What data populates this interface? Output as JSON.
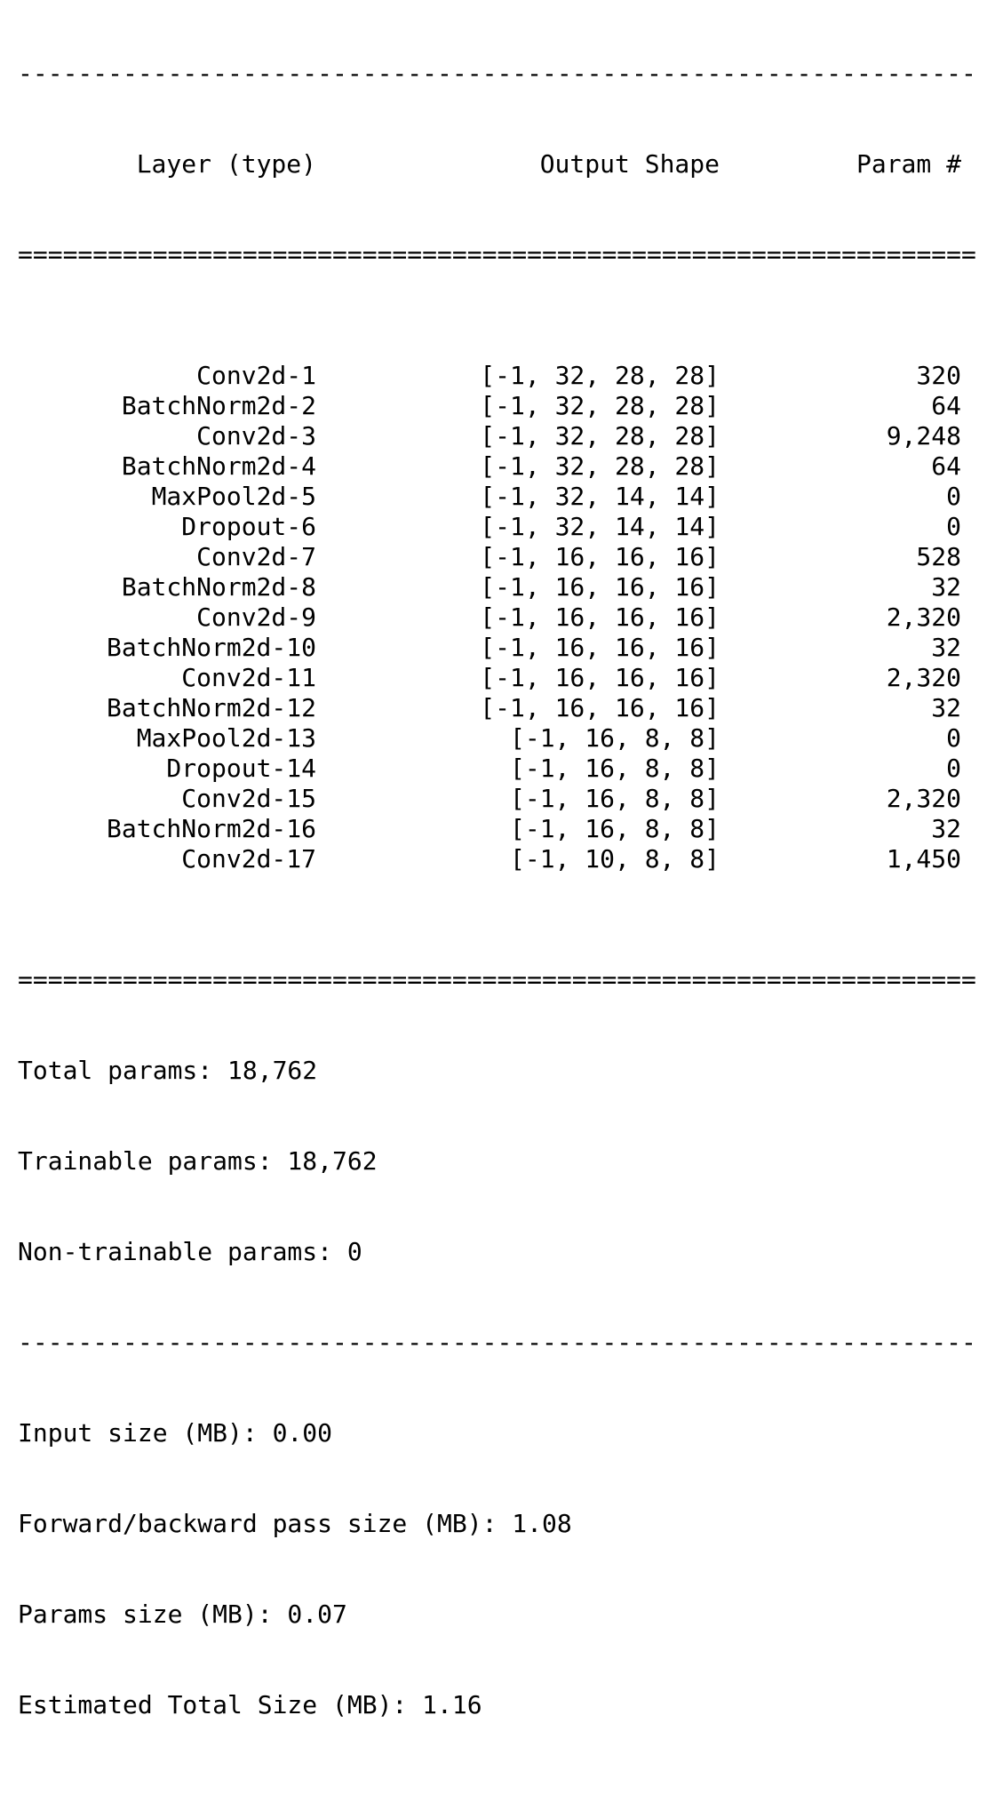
{
  "rules": {
    "dash": "----------------------------------------------------------------",
    "equal": "================================================================"
  },
  "header": {
    "layer": "Layer (type)",
    "shape": "Output Shape",
    "param": "Param #"
  },
  "rows": [
    {
      "layer": "Conv2d-1",
      "shape": "[-1, 32, 28, 28]",
      "param": "320"
    },
    {
      "layer": "BatchNorm2d-2",
      "shape": "[-1, 32, 28, 28]",
      "param": "64"
    },
    {
      "layer": "Conv2d-3",
      "shape": "[-1, 32, 28, 28]",
      "param": "9,248"
    },
    {
      "layer": "BatchNorm2d-4",
      "shape": "[-1, 32, 28, 28]",
      "param": "64"
    },
    {
      "layer": "MaxPool2d-5",
      "shape": "[-1, 32, 14, 14]",
      "param": "0"
    },
    {
      "layer": "Dropout-6",
      "shape": "[-1, 32, 14, 14]",
      "param": "0"
    },
    {
      "layer": "Conv2d-7",
      "shape": "[-1, 16, 16, 16]",
      "param": "528"
    },
    {
      "layer": "BatchNorm2d-8",
      "shape": "[-1, 16, 16, 16]",
      "param": "32"
    },
    {
      "layer": "Conv2d-9",
      "shape": "[-1, 16, 16, 16]",
      "param": "2,320"
    },
    {
      "layer": "BatchNorm2d-10",
      "shape": "[-1, 16, 16, 16]",
      "param": "32"
    },
    {
      "layer": "Conv2d-11",
      "shape": "[-1, 16, 16, 16]",
      "param": "2,320"
    },
    {
      "layer": "BatchNorm2d-12",
      "shape": "[-1, 16, 16, 16]",
      "param": "32"
    },
    {
      "layer": "MaxPool2d-13",
      "shape": "[-1, 16, 8, 8]",
      "param": "0"
    },
    {
      "layer": "Dropout-14",
      "shape": "[-1, 16, 8, 8]",
      "param": "0"
    },
    {
      "layer": "Conv2d-15",
      "shape": "[-1, 16, 8, 8]",
      "param": "2,320"
    },
    {
      "layer": "BatchNorm2d-16",
      "shape": "[-1, 16, 8, 8]",
      "param": "32"
    },
    {
      "layer": "Conv2d-17",
      "shape": "[-1, 10, 8, 8]",
      "param": "1,450"
    }
  ],
  "params": {
    "total": "Total params: 18,762",
    "trainable": "Trainable params: 18,762",
    "non_trainable": "Non-trainable params: 0"
  },
  "sizes": {
    "input": "Input size (MB): 0.00",
    "forward_backward": "Forward/backward pass size (MB): 1.08",
    "params": "Params size (MB): 0.07",
    "estimated_total": "Estimated Total Size (MB): 1.16"
  }
}
